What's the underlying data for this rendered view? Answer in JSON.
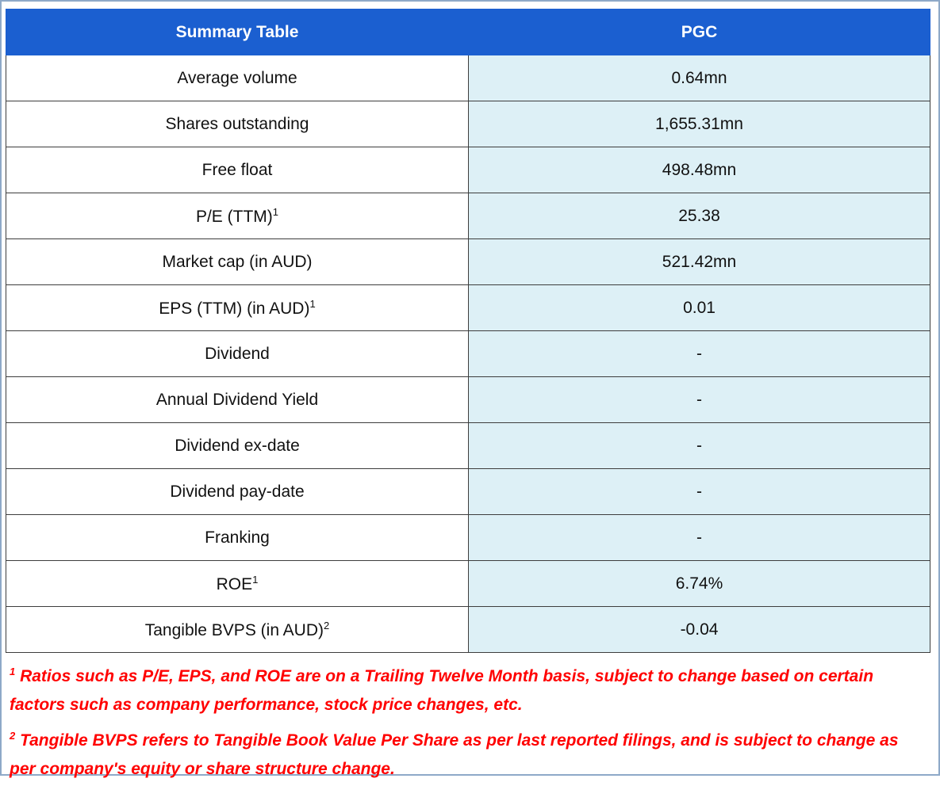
{
  "table": {
    "header": [
      "Summary Table",
      "PGC"
    ],
    "rows": [
      {
        "label": "Average volume",
        "value": "0.64mn"
      },
      {
        "label": "Shares outstanding",
        "value": "1,655.31mn"
      },
      {
        "label": "Free float",
        "value": "498.48mn"
      },
      {
        "label": "P/E (TTM)",
        "sup": "1",
        "value": "25.38"
      },
      {
        "label": "Market cap (in AUD)",
        "value": "521.42mn"
      },
      {
        "label": "EPS (TTM) (in AUD)",
        "sup": "1",
        "value": "0.01"
      },
      {
        "label": "Dividend",
        "value": "-"
      },
      {
        "label": "Annual Dividend Yield",
        "value": "-"
      },
      {
        "label": "Dividend ex-date",
        "value": "-"
      },
      {
        "label": "Dividend pay-date",
        "value": "-"
      },
      {
        "label": "Franking",
        "value": "-"
      },
      {
        "label": "ROE",
        "sup": "1",
        "value": "6.74%"
      },
      {
        "label": "Tangible BVPS (in AUD)",
        "sup": "2",
        "value": "-0.04"
      }
    ]
  },
  "footnotes": [
    {
      "sup": "1",
      "text": "Ratios such as P/E, EPS, and ROE are on a Trailing Twelve Month basis, subject to change based on certain factors such as company performance, stock price changes, etc."
    },
    {
      "sup": "2",
      "text": "Tangible BVPS refers to Tangible Book Value Per Share as per last reported filings, and is subject to change as per company's equity or share structure change."
    }
  ]
}
